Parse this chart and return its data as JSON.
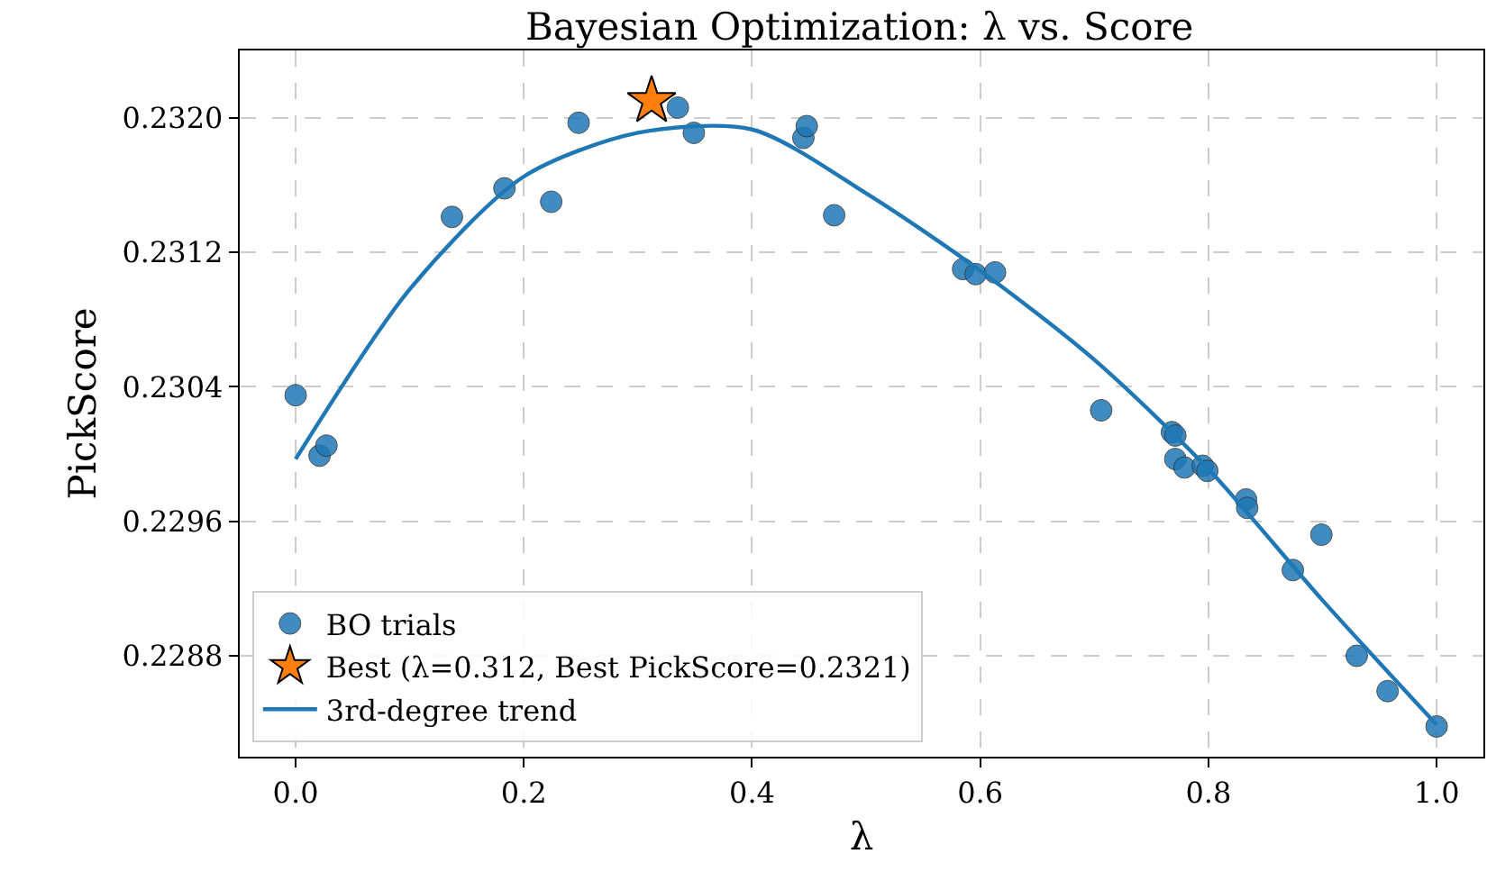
{
  "chart_data": {
    "type": "scatter",
    "title": "Bayesian Optimization: λ vs. Score",
    "xlabel": "λ",
    "ylabel": "PickScore",
    "xlim": [
      -0.049,
      1.041
    ],
    "ylim": [
      0.2282,
      0.2324
    ],
    "xticks": [
      {
        "value": 0,
        "label": "0.0"
      },
      {
        "value": 0.2,
        "label": "0.2"
      },
      {
        "value": 0.4,
        "label": "0.4"
      },
      {
        "value": 0.6,
        "label": "0.6"
      },
      {
        "value": 0.8,
        "label": "0.8"
      },
      {
        "value": 1,
        "label": "1.0"
      }
    ],
    "yticks": [
      {
        "value": 0.2288,
        "label": "0.2288"
      },
      {
        "value": 0.2296,
        "label": "0.2296"
      },
      {
        "value": 0.2304,
        "label": "0.2304"
      },
      {
        "value": 0.2312,
        "label": "0.2312"
      },
      {
        "value": 0.232,
        "label": "0.2320"
      }
    ],
    "grid": true,
    "legend": "bottom left",
    "series": [
      {
        "name": "BO trials",
        "marker": "circle",
        "color": "#1f77b4",
        "x": [
          0,
          0.021,
          0.027,
          0.137,
          0.183,
          0.224,
          0.248,
          0.335,
          0.349,
          0.445,
          0.448,
          0.472,
          0.585,
          0.596,
          0.613,
          0.706,
          0.768,
          0.771,
          0.771,
          0.779,
          0.795,
          0.799,
          0.833,
          0.834,
          0.874,
          0.899,
          0.93,
          0.957,
          1.0
        ],
        "values": [
          0.23035,
          0.22999,
          0.23005,
          0.23141,
          0.23158,
          0.2315,
          0.23197,
          0.23206,
          0.23191,
          0.23188,
          0.23195,
          0.23142,
          0.2311,
          0.23107,
          0.23108,
          0.23026,
          0.23013,
          0.23011,
          0.22997,
          0.22992,
          0.22993,
          0.2299,
          0.22973,
          0.22968,
          0.22931,
          0.22952,
          0.2288,
          0.22859,
          0.22838
        ]
      },
      {
        "name": "Best (λ=0.312, Best PickScore=0.2321)",
        "type": "scatter",
        "marker": "star",
        "color": "#ff7f0e",
        "x": [
          0.312
        ],
        "values": [
          0.2321
        ]
      },
      {
        "name": "3rd-degree trend",
        "type": "line",
        "marker": "none",
        "line_style": "solid",
        "color": "#1f77b4",
        "x": [
          0,
          0.1,
          0.2,
          0.3,
          0.4,
          0.5,
          0.6,
          0.7,
          0.8,
          0.9,
          1.0
        ],
        "values": [
          0.22997,
          0.23098,
          0.23165,
          0.23191,
          0.23193,
          0.23155,
          0.23109,
          0.23056,
          0.22991,
          0.22913,
          0.22839
        ]
      }
    ]
  }
}
